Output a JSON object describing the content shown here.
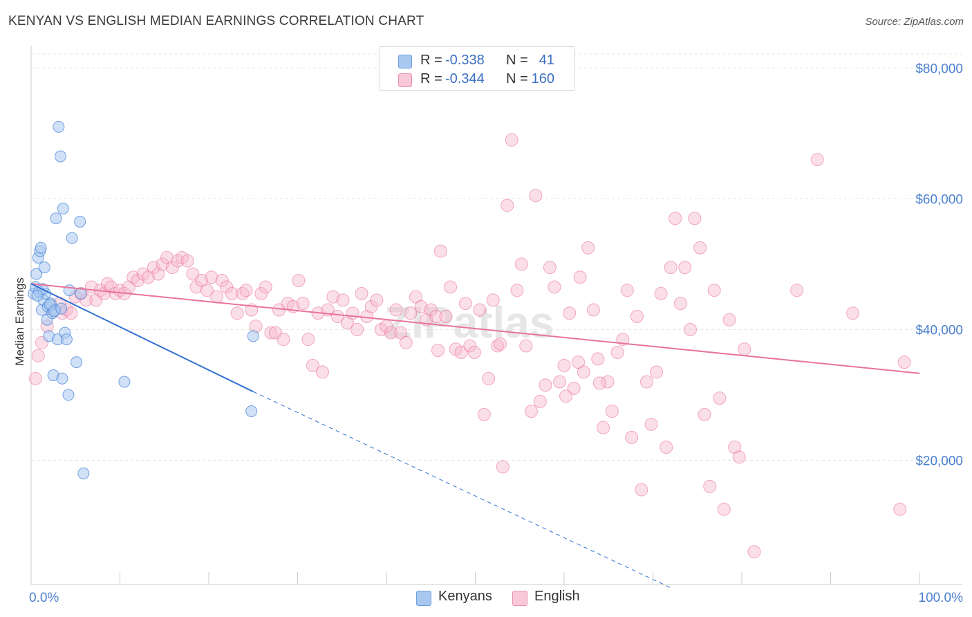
{
  "title": "KENYAN VS ENGLISH MEDIAN EARNINGS CORRELATION CHART",
  "source": "Source: ZipAtlas.com",
  "watermark": "ZIPatlas",
  "colors": {
    "kenyans": "#4a86d8",
    "kenyans_fill": "#a9c8f0",
    "english": "#e9739b",
    "english_fill": "#f6b8cc",
    "tick": "#4a7fd0"
  },
  "legend": {
    "rows": [
      {
        "series": "Kenyans",
        "r_label": "R =",
        "r_value": "-0.338",
        "n_label": "N =",
        "n_value": "41"
      },
      {
        "series": "English",
        "r_label": "R =",
        "r_value": "-0.344",
        "n_label": "N =",
        "n_value": "160"
      }
    ]
  },
  "bottom_legend": [
    "Kenyans",
    "English"
  ],
  "chart_data": {
    "type": "scatter",
    "title": "KENYAN VS ENGLISH MEDIAN EARNINGS CORRELATION CHART",
    "xlabel": "",
    "ylabel": "Median Earnings",
    "xlim": [
      0,
      100
    ],
    "ylim": [
      1000,
      83000
    ],
    "x_tick_labels": [
      "0.0%",
      "100.0%"
    ],
    "y_ticks": [
      20000,
      40000,
      60000,
      80000
    ],
    "y_tick_labels": [
      "$20,000",
      "$40,000",
      "$60,000",
      "$80,000"
    ],
    "grid": true,
    "series": [
      {
        "name": "Kenyans",
        "r": -0.338,
        "n": 41,
        "trend": {
          "x0": 0,
          "y0": 47000,
          "x1": 25,
          "y1": 30500,
          "dash_to_x": 72,
          "dash_to_y": 500
        },
        "points": [
          [
            0.3,
            45500
          ],
          [
            0.5,
            46500
          ],
          [
            0.6,
            48500
          ],
          [
            0.8,
            51000
          ],
          [
            1.0,
            52000
          ],
          [
            1.1,
            52500
          ],
          [
            1.2,
            43000
          ],
          [
            1.4,
            44500
          ],
          [
            1.5,
            49500
          ],
          [
            1.6,
            45500
          ],
          [
            1.8,
            41500
          ],
          [
            1.9,
            43500
          ],
          [
            2.0,
            39000
          ],
          [
            2.2,
            44000
          ],
          [
            2.4,
            42500
          ],
          [
            2.5,
            33000
          ],
          [
            2.7,
            43000
          ],
          [
            2.8,
            57000
          ],
          [
            3.0,
            38500
          ],
          [
            3.1,
            71000
          ],
          [
            3.3,
            66500
          ],
          [
            3.5,
            32500
          ],
          [
            3.6,
            58500
          ],
          [
            3.8,
            39500
          ],
          [
            4.0,
            38500
          ],
          [
            4.2,
            30000
          ],
          [
            4.3,
            46000
          ],
          [
            4.6,
            54000
          ],
          [
            5.1,
            35000
          ],
          [
            5.5,
            56500
          ],
          [
            5.9,
            18000
          ],
          [
            10.5,
            32000
          ],
          [
            24.8,
            27500
          ],
          [
            25.0,
            39000
          ],
          [
            0.9,
            45800
          ],
          [
            1.3,
            46200
          ],
          [
            2.1,
            43800
          ],
          [
            2.6,
            42800
          ],
          [
            0.7,
            45200
          ],
          [
            3.4,
            43200
          ],
          [
            5.6,
            45500
          ]
        ]
      },
      {
        "name": "English",
        "r": -0.344,
        "n": 160,
        "trend": {
          "x0": 0,
          "y0": 47000,
          "x1": 100,
          "y1": 33300
        },
        "points": [
          [
            0.5,
            32500
          ],
          [
            0.8,
            36000
          ],
          [
            1.2,
            38000
          ],
          [
            1.8,
            40500
          ],
          [
            2.5,
            43000
          ],
          [
            3.2,
            44000
          ],
          [
            3.5,
            42500
          ],
          [
            4.0,
            43000
          ],
          [
            4.5,
            42500
          ],
          [
            5.0,
            45000
          ],
          [
            5.6,
            45500
          ],
          [
            6.2,
            44500
          ],
          [
            6.8,
            46500
          ],
          [
            7.3,
            44500
          ],
          [
            7.8,
            46000
          ],
          [
            8.2,
            45500
          ],
          [
            8.6,
            47000
          ],
          [
            9.0,
            46500
          ],
          [
            9.5,
            45500
          ],
          [
            10.0,
            46000
          ],
          [
            10.5,
            45500
          ],
          [
            11.0,
            46500
          ],
          [
            11.5,
            48000
          ],
          [
            12.0,
            47500
          ],
          [
            12.6,
            48500
          ],
          [
            13.2,
            48000
          ],
          [
            13.8,
            49500
          ],
          [
            14.3,
            48500
          ],
          [
            14.8,
            50000
          ],
          [
            15.3,
            51000
          ],
          [
            15.9,
            49500
          ],
          [
            16.5,
            50500
          ],
          [
            17.0,
            51000
          ],
          [
            17.6,
            50500
          ],
          [
            18.2,
            48500
          ],
          [
            18.6,
            46500
          ],
          [
            19.2,
            47500
          ],
          [
            19.8,
            46000
          ],
          [
            20.3,
            48000
          ],
          [
            20.9,
            45000
          ],
          [
            21.5,
            47500
          ],
          [
            22.0,
            46500
          ],
          [
            22.6,
            45500
          ],
          [
            23.2,
            42500
          ],
          [
            23.8,
            45500
          ],
          [
            24.2,
            46000
          ],
          [
            24.8,
            43000
          ],
          [
            25.3,
            40500
          ],
          [
            25.9,
            45500
          ],
          [
            26.4,
            46500
          ],
          [
            27.0,
            39500
          ],
          [
            27.5,
            39500
          ],
          [
            27.9,
            43000
          ],
          [
            28.4,
            38500
          ],
          [
            28.9,
            44000
          ],
          [
            29.5,
            43500
          ],
          [
            30.1,
            47500
          ],
          [
            30.6,
            44000
          ],
          [
            31.2,
            38500
          ],
          [
            31.7,
            34500
          ],
          [
            32.3,
            42500
          ],
          [
            32.8,
            33500
          ],
          [
            33.4,
            43000
          ],
          [
            34.0,
            45000
          ],
          [
            34.5,
            42000
          ],
          [
            35.1,
            44500
          ],
          [
            35.6,
            41000
          ],
          [
            36.2,
            42500
          ],
          [
            36.7,
            40000
          ],
          [
            37.2,
            45500
          ],
          [
            37.8,
            42000
          ],
          [
            38.3,
            43500
          ],
          [
            38.9,
            44500
          ],
          [
            39.4,
            40000
          ],
          [
            40.0,
            40500
          ],
          [
            40.5,
            39500
          ],
          [
            41.1,
            43000
          ],
          [
            41.6,
            39500
          ],
          [
            42.2,
            38000
          ],
          [
            42.7,
            42500
          ],
          [
            43.3,
            45000
          ],
          [
            43.9,
            43500
          ],
          [
            44.5,
            41500
          ],
          [
            45.0,
            43000
          ],
          [
            45.6,
            42000
          ],
          [
            46.1,
            52000
          ],
          [
            46.7,
            42000
          ],
          [
            47.2,
            46500
          ],
          [
            47.8,
            37000
          ],
          [
            48.4,
            36500
          ],
          [
            48.9,
            44000
          ],
          [
            49.4,
            37500
          ],
          [
            49.9,
            36500
          ],
          [
            50.5,
            43000
          ],
          [
            51.0,
            27000
          ],
          [
            51.5,
            32500
          ],
          [
            52.0,
            44500
          ],
          [
            52.5,
            37500
          ],
          [
            53.1,
            19000
          ],
          [
            53.6,
            59000
          ],
          [
            54.1,
            69000
          ],
          [
            54.7,
            46000
          ],
          [
            55.2,
            50000
          ],
          [
            55.7,
            37500
          ],
          [
            56.3,
            27500
          ],
          [
            56.8,
            60500
          ],
          [
            57.3,
            29000
          ],
          [
            57.9,
            31500
          ],
          [
            58.4,
            49500
          ],
          [
            58.9,
            46500
          ],
          [
            59.5,
            32000
          ],
          [
            60.0,
            34500
          ],
          [
            60.6,
            42500
          ],
          [
            61.1,
            31000
          ],
          [
            61.6,
            35000
          ],
          [
            62.2,
            33500
          ],
          [
            62.7,
            52500
          ],
          [
            63.3,
            43000
          ],
          [
            63.8,
            35500
          ],
          [
            64.4,
            25000
          ],
          [
            64.9,
            32000
          ],
          [
            65.4,
            27500
          ],
          [
            66.0,
            36500
          ],
          [
            66.6,
            38500
          ],
          [
            67.1,
            46000
          ],
          [
            67.6,
            23500
          ],
          [
            68.2,
            42000
          ],
          [
            68.7,
            15500
          ],
          [
            69.3,
            32000
          ],
          [
            69.8,
            25500
          ],
          [
            70.4,
            33500
          ],
          [
            70.9,
            45500
          ],
          [
            71.5,
            22000
          ],
          [
            72.0,
            49500
          ],
          [
            72.5,
            57000
          ],
          [
            73.1,
            44000
          ],
          [
            73.6,
            49500
          ],
          [
            74.2,
            40000
          ],
          [
            74.7,
            57000
          ],
          [
            75.3,
            52500
          ],
          [
            75.8,
            27000
          ],
          [
            76.4,
            16000
          ],
          [
            76.9,
            46000
          ],
          [
            77.5,
            29500
          ],
          [
            78.0,
            12500
          ],
          [
            78.6,
            41500
          ],
          [
            79.2,
            22000
          ],
          [
            79.7,
            20500
          ],
          [
            80.3,
            37000
          ],
          [
            86.2,
            46000
          ],
          [
            81.4,
            6000
          ],
          [
            88.5,
            66000
          ],
          [
            97.8,
            12500
          ],
          [
            98.3,
            35000
          ],
          [
            60.2,
            29800
          ],
          [
            64.0,
            31800
          ],
          [
            61.8,
            48000
          ],
          [
            52.8,
            37800
          ],
          [
            45.8,
            36800
          ],
          [
            92.5,
            42500
          ]
        ]
      }
    ]
  }
}
